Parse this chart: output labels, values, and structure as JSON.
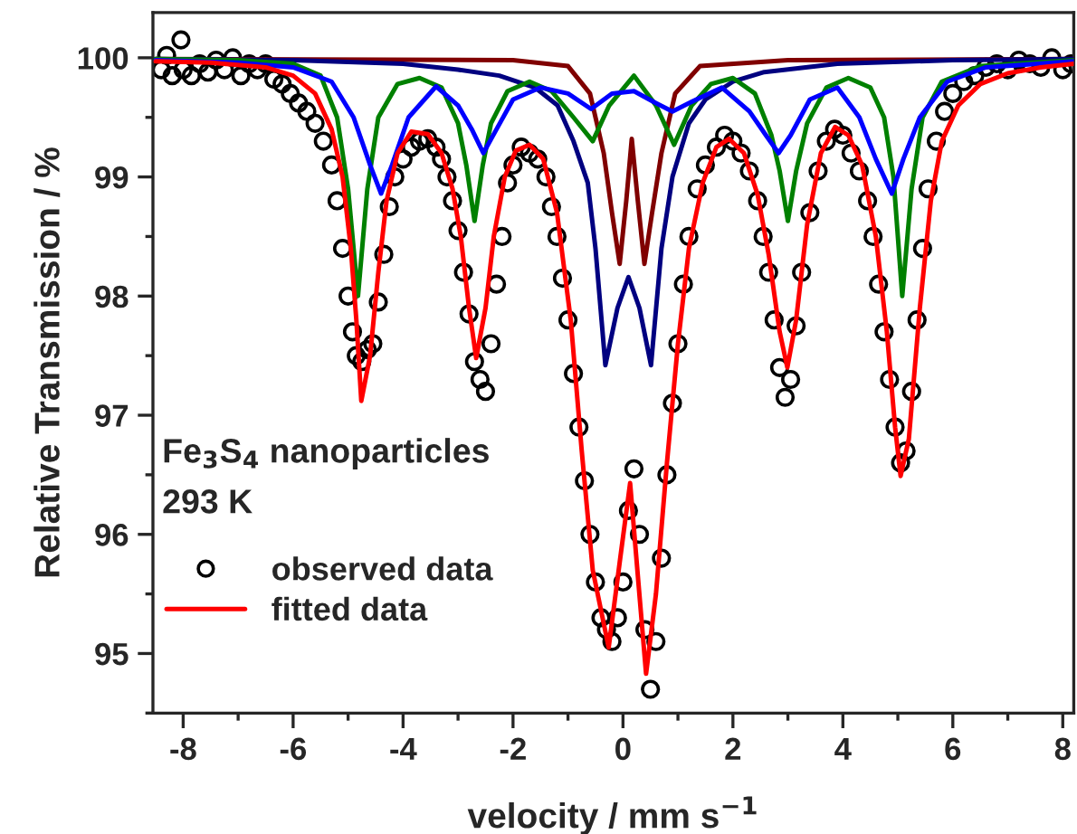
{
  "chart_data": {
    "type": "line",
    "xlabel": "velocity / mm s$^{−1}$",
    "ylabel": "Relative Transmission / %",
    "xlim": [
      -8.55,
      8.2
    ],
    "ylim": [
      94.5,
      100.38
    ],
    "xticks": [
      -8,
      -6,
      -4,
      -2,
      0,
      2,
      4,
      6,
      8
    ],
    "yticks": [
      95,
      96,
      97,
      98,
      99,
      100
    ],
    "grid": false,
    "legend": "lower left",
    "annotations": [
      "Fe$_{3}$S$_{4}$ nanoparticles",
      "293 K"
    ],
    "series": [
      {
        "name": "observed data",
        "type": "scatter",
        "marker": "circle",
        "color": "#000000",
        "x": [
          -8.4,
          -8.3,
          -8.2,
          -8.04,
          -8.0,
          -7.85,
          -7.7,
          -7.55,
          -7.4,
          -7.25,
          -7.1,
          -6.95,
          -6.8,
          -6.65,
          -6.5,
          -6.35,
          -6.2,
          -6.05,
          -5.9,
          -5.75,
          -5.6,
          -5.45,
          -5.3,
          -5.2,
          -5.1,
          -5.0,
          -4.92,
          -4.85,
          -4.75,
          -4.65,
          -4.55,
          -4.45,
          -4.35,
          -4.25,
          -4.15,
          -4.0,
          -3.85,
          -3.7,
          -3.55,
          -3.4,
          -3.3,
          -3.2,
          -3.1,
          -3.0,
          -2.9,
          -2.8,
          -2.7,
          -2.6,
          -2.5,
          -2.4,
          -2.3,
          -2.2,
          -2.1,
          -2.0,
          -1.85,
          -1.7,
          -1.55,
          -1.4,
          -1.3,
          -1.2,
          -1.1,
          -1.0,
          -0.9,
          -0.8,
          -0.7,
          -0.6,
          -0.5,
          -0.4,
          -0.3,
          -0.2,
          -0.1,
          0.0,
          0.1,
          0.2,
          0.3,
          0.4,
          0.5,
          0.6,
          0.7,
          0.8,
          0.9,
          1.0,
          1.1,
          1.2,
          1.35,
          1.5,
          1.7,
          1.85,
          2.0,
          2.15,
          2.3,
          2.45,
          2.55,
          2.65,
          2.75,
          2.85,
          2.95,
          3.05,
          3.15,
          3.25,
          3.4,
          3.55,
          3.7,
          3.85,
          4.0,
          4.15,
          4.3,
          4.45,
          4.55,
          4.65,
          4.75,
          4.85,
          4.95,
          5.05,
          5.15,
          5.25,
          5.35,
          5.45,
          5.55,
          5.7,
          5.85,
          6.0,
          6.2,
          6.4,
          6.6,
          6.8,
          7.0,
          7.2,
          7.4,
          7.6,
          7.8,
          8.0,
          8.15
        ],
        "values": [
          99.9,
          100.02,
          99.85,
          100.15,
          99.9,
          99.85,
          99.95,
          99.88,
          99.98,
          99.9,
          100.0,
          99.85,
          99.95,
          99.9,
          99.95,
          99.82,
          99.78,
          99.7,
          99.62,
          99.55,
          99.45,
          99.3,
          99.1,
          98.8,
          98.4,
          98.0,
          97.7,
          97.5,
          97.45,
          97.55,
          97.6,
          97.95,
          98.35,
          98.75,
          99.0,
          99.15,
          99.25,
          99.3,
          99.32,
          99.25,
          99.15,
          99.0,
          98.8,
          98.55,
          98.2,
          97.85,
          97.45,
          97.3,
          97.2,
          97.6,
          98.1,
          98.5,
          98.95,
          99.1,
          99.25,
          99.2,
          99.15,
          99.0,
          98.75,
          98.5,
          98.15,
          97.8,
          97.35,
          96.9,
          96.45,
          96.0,
          95.6,
          95.3,
          95.2,
          95.1,
          95.3,
          95.6,
          96.2,
          96.55,
          96.0,
          95.2,
          94.7,
          95.1,
          95.8,
          96.5,
          97.1,
          97.6,
          98.1,
          98.5,
          98.9,
          99.1,
          99.25,
          99.35,
          99.3,
          99.2,
          99.05,
          98.8,
          98.5,
          98.2,
          97.8,
          97.4,
          97.15,
          97.3,
          97.75,
          98.2,
          98.7,
          99.05,
          99.3,
          99.4,
          99.35,
          99.2,
          99.05,
          98.8,
          98.5,
          98.1,
          97.7,
          97.3,
          96.9,
          96.6,
          96.7,
          97.2,
          97.8,
          98.4,
          98.9,
          99.3,
          99.55,
          99.7,
          99.8,
          99.85,
          99.92,
          99.95,
          99.9,
          99.98,
          99.95,
          99.92,
          100.0,
          99.9,
          99.95
        ]
      },
      {
        "color": "#800000",
        "x": [
          -8.5,
          -2,
          -1,
          -0.6,
          -0.35,
          -0.2,
          -0.06,
          0.06,
          0.16,
          0.27,
          0.39,
          0.53,
          0.7,
          0.95,
          1.4,
          3,
          8.2
        ],
        "values": [
          99.99,
          99.98,
          99.93,
          99.7,
          99.2,
          98.7,
          98.27,
          98.8,
          99.32,
          98.8,
          98.27,
          98.7,
          99.2,
          99.7,
          99.93,
          99.98,
          99.99
        ]
      },
      {
        "color": "#000080",
        "x": [
          -8.5,
          -6,
          -4,
          -3,
          -2.25,
          -1.6,
          -1.19,
          -0.9,
          -0.64,
          -0.5,
          -0.32,
          -0.1,
          0.1,
          0.3,
          0.51,
          0.7,
          0.9,
          1.2,
          1.5,
          2.0,
          2.57,
          3.9,
          6,
          8.2
        ],
        "values": [
          99.99,
          99.98,
          99.95,
          99.9,
          99.85,
          99.75,
          99.6,
          99.3,
          98.95,
          98.4,
          97.42,
          97.9,
          98.16,
          97.9,
          97.42,
          98.4,
          99.0,
          99.45,
          99.65,
          99.8,
          99.88,
          99.95,
          99.98,
          99.99
        ]
      },
      {
        "color": "#008000",
        "x": [
          -8.5,
          -7,
          -6,
          -5.5,
          -5.2,
          -5.0,
          -4.82,
          -4.65,
          -4.45,
          -4.1,
          -3.7,
          -3.3,
          -3.0,
          -2.85,
          -2.7,
          -2.55,
          -2.4,
          -2.1,
          -1.7,
          -1.3,
          -0.9,
          -0.55,
          -0.25,
          0.2,
          0.6,
          0.93,
          1.25,
          1.6,
          2.0,
          2.4,
          2.7,
          2.85,
          3.0,
          3.15,
          3.35,
          3.7,
          4.1,
          4.5,
          4.75,
          4.92,
          5.08,
          5.25,
          5.45,
          5.8,
          6.5,
          8.2
        ],
        "values": [
          99.99,
          99.98,
          99.95,
          99.85,
          99.5,
          98.9,
          98.0,
          98.9,
          99.5,
          99.78,
          99.83,
          99.75,
          99.45,
          99.1,
          98.63,
          99.1,
          99.45,
          99.72,
          99.8,
          99.72,
          99.5,
          99.3,
          99.6,
          99.85,
          99.6,
          99.27,
          99.6,
          99.78,
          99.83,
          99.7,
          99.35,
          99.05,
          98.63,
          99.05,
          99.45,
          99.75,
          99.83,
          99.75,
          99.5,
          99.0,
          98.0,
          98.9,
          99.5,
          99.8,
          99.93,
          99.98
        ]
      },
      {
        "color": "#0000ff",
        "x": [
          -8.5,
          -7,
          -6,
          -5.3,
          -4.9,
          -4.6,
          -4.4,
          -4.2,
          -3.9,
          -3.4,
          -3.0,
          -2.75,
          -2.54,
          -2.3,
          -2.0,
          -1.5,
          -1.0,
          -0.58,
          -0.2,
          0.2,
          0.6,
          0.9,
          1.2,
          1.8,
          2.3,
          2.6,
          2.83,
          3.05,
          3.4,
          3.9,
          4.3,
          4.6,
          4.89,
          5.1,
          5.4,
          5.9,
          6.6,
          8.2
        ],
        "values": [
          99.98,
          99.96,
          99.92,
          99.8,
          99.5,
          99.1,
          98.86,
          99.1,
          99.5,
          99.76,
          99.6,
          99.4,
          99.2,
          99.4,
          99.65,
          99.75,
          99.7,
          99.57,
          99.7,
          99.72,
          99.62,
          99.55,
          99.62,
          99.75,
          99.55,
          99.35,
          99.2,
          99.35,
          99.65,
          99.75,
          99.5,
          99.15,
          98.86,
          99.15,
          99.5,
          99.8,
          99.92,
          99.97
        ]
      },
      {
        "name": "fitted data",
        "color": "#ff0000",
        "x": [
          -8.5,
          -7.5,
          -6.5,
          -6.0,
          -5.6,
          -5.3,
          -5.1,
          -4.95,
          -4.85,
          -4.76,
          -4.6,
          -4.45,
          -4.3,
          -4.1,
          -3.85,
          -3.55,
          -3.3,
          -3.1,
          -2.95,
          -2.8,
          -2.67,
          -2.5,
          -2.35,
          -2.15,
          -1.95,
          -1.7,
          -1.45,
          -1.2,
          -0.95,
          -0.75,
          -0.55,
          -0.26,
          -0.05,
          0.13,
          0.28,
          0.42,
          0.6,
          0.8,
          1.0,
          1.2,
          1.45,
          1.7,
          1.93,
          2.2,
          2.45,
          2.65,
          2.85,
          2.99,
          3.15,
          3.35,
          3.6,
          3.86,
          4.1,
          4.35,
          4.6,
          4.8,
          4.95,
          5.05,
          5.2,
          5.4,
          5.6,
          5.8,
          6.1,
          6.5,
          7.0,
          7.6,
          8.2
        ],
        "values": [
          99.97,
          99.96,
          99.92,
          99.85,
          99.7,
          99.4,
          99.0,
          98.4,
          97.8,
          97.12,
          97.5,
          98.2,
          98.8,
          99.2,
          99.38,
          99.36,
          99.2,
          98.9,
          98.5,
          97.9,
          97.48,
          97.9,
          98.5,
          99.0,
          99.22,
          99.27,
          99.15,
          98.7,
          97.8,
          96.7,
          95.7,
          95.05,
          95.8,
          96.43,
          95.6,
          94.83,
          95.5,
          96.6,
          97.6,
          98.4,
          98.95,
          99.25,
          99.32,
          99.2,
          98.85,
          98.35,
          97.7,
          97.4,
          97.8,
          98.6,
          99.2,
          99.42,
          99.35,
          99.1,
          98.5,
          97.7,
          96.9,
          96.49,
          96.8,
          97.9,
          98.8,
          99.3,
          99.6,
          99.78,
          99.87,
          99.92,
          99.95
        ]
      }
    ]
  }
}
